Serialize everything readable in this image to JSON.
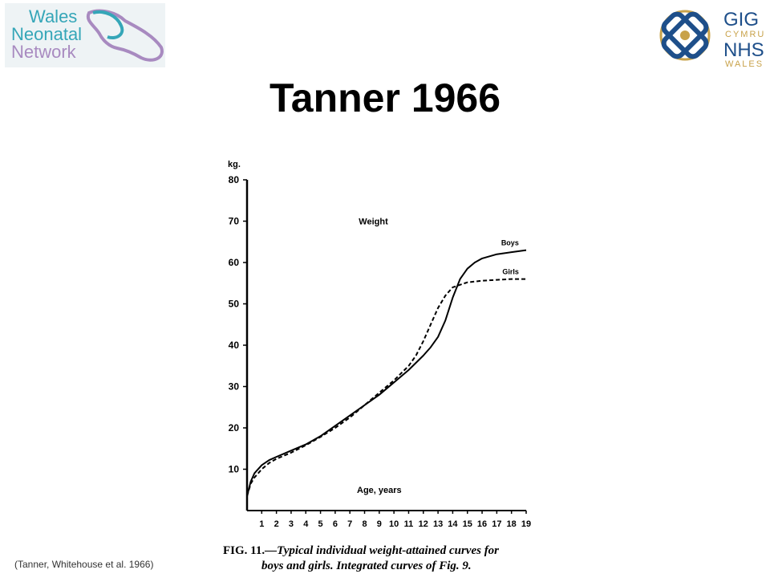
{
  "slide": {
    "title": "Tanner 1966",
    "citation": "(Tanner, Whitehouse et al. 1966)"
  },
  "logos": {
    "left": {
      "lines": [
        "Wales",
        "Neonatal",
        "Network"
      ],
      "colors": [
        "#35a6b8",
        "#a88ac0"
      ]
    },
    "right": {
      "lines": [
        "GIG",
        "CYMRU",
        "NHS",
        "WALES"
      ],
      "colors": [
        "#1e4f8a",
        "#c8a24a"
      ]
    }
  },
  "chart_data": {
    "type": "line",
    "title": "",
    "inner_title": "Weight",
    "ylabel": "kg.",
    "xlabel": "Age, years",
    "ylim": [
      0,
      80
    ],
    "xlim": [
      0,
      19
    ],
    "y_ticks": [
      10,
      20,
      30,
      40,
      50,
      60,
      70,
      80
    ],
    "x_ticks": [
      1,
      2,
      3,
      4,
      5,
      6,
      7,
      8,
      9,
      10,
      11,
      12,
      13,
      14,
      15,
      16,
      17,
      18,
      19
    ],
    "series": [
      {
        "name": "Boys",
        "style": "solid",
        "x": [
          0,
          0.25,
          0.5,
          1,
          1.5,
          2,
          3,
          4,
          5,
          6,
          7,
          8,
          9,
          10,
          11,
          12,
          12.5,
          13,
          13.5,
          14,
          14.5,
          15,
          15.5,
          16,
          17,
          18,
          19
        ],
        "y": [
          3.5,
          7,
          9,
          11,
          12.2,
          13,
          14.5,
          16,
          18,
          20.5,
          23,
          25.5,
          28,
          31,
          34,
          37.5,
          39.5,
          42,
          46,
          51.5,
          56,
          58.5,
          60,
          61,
          62,
          62.5,
          63
        ]
      },
      {
        "name": "Girls",
        "style": "dashed",
        "x": [
          0,
          0.25,
          0.5,
          1,
          1.5,
          2,
          3,
          4,
          5,
          6,
          7,
          8,
          9,
          10,
          11,
          11.5,
          12,
          12.5,
          13,
          13.5,
          14,
          15,
          16,
          17,
          18,
          19
        ],
        "y": [
          3.5,
          6.5,
          8,
          10,
          11.5,
          12.5,
          14,
          15.8,
          17.8,
          20,
          22.5,
          25.5,
          28.5,
          31.5,
          35,
          37.5,
          41,
          45,
          49,
          52,
          54,
          55.2,
          55.6,
          55.8,
          56,
          56
        ]
      }
    ],
    "caption": {
      "label": "FIG. 11.",
      "text_line1": "—Typical individual weight-attained curves for",
      "text_line2": "boys and girls.  Integrated curves of Fig. 9."
    }
  }
}
